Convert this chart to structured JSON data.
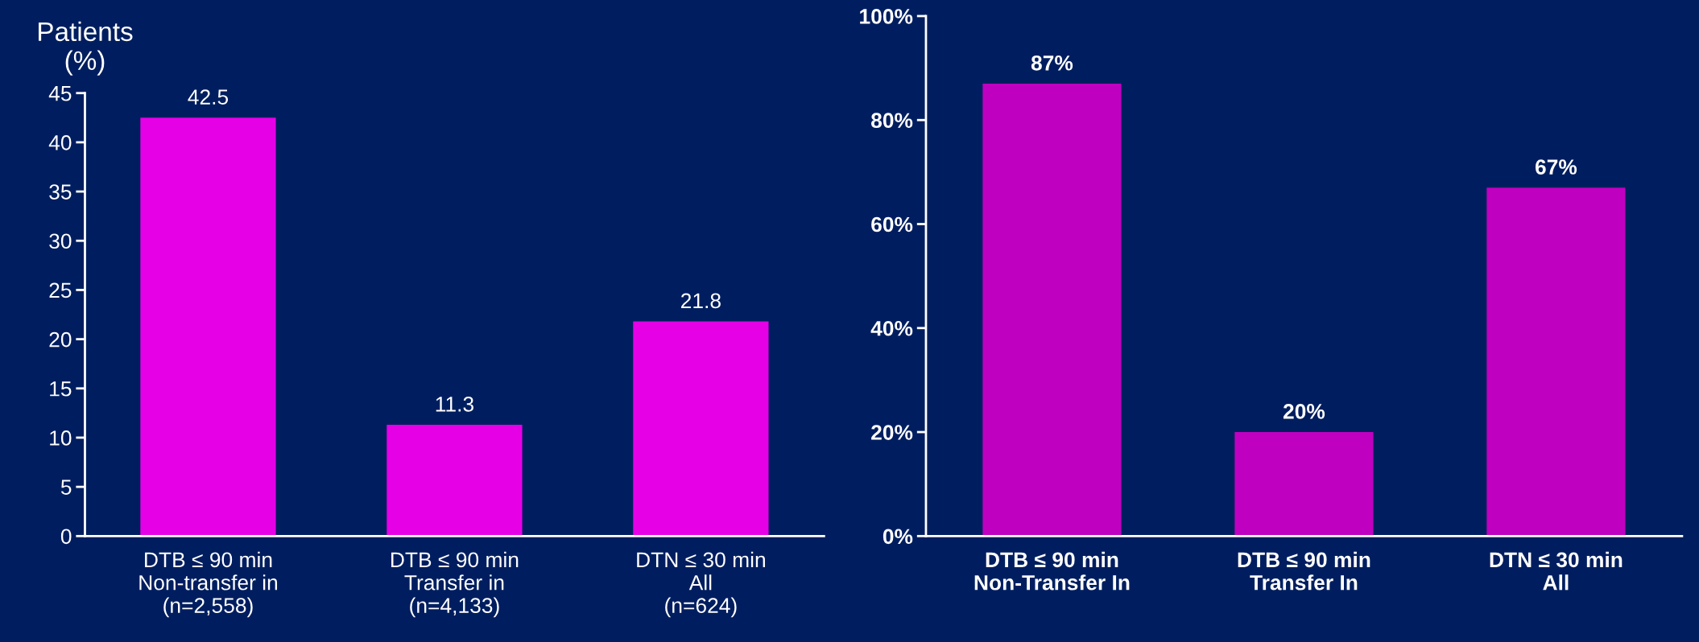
{
  "chart_data": [
    {
      "type": "bar",
      "ylabel": "Patients\n(%)",
      "categories": [
        "DTB ≤ 90 min\nNon-transfer in\n(n=2,558)",
        "DTB ≤ 90 min\nTransfer in\n(n=4,133)",
        "DTN ≤ 30 min\nAll\n(n=624)"
      ],
      "values": [
        42.5,
        11.3,
        21.8
      ],
      "color": "#e600e6",
      "ylim": [
        0,
        45
      ],
      "yticks": [
        0,
        5,
        10,
        15,
        20,
        25,
        30,
        35,
        40,
        45
      ],
      "data_labels": true,
      "grid": false,
      "legend": false
    },
    {
      "type": "bar",
      "categories": [
        "DTB ≤ 90 min\nNon-Transfer In",
        "DTB ≤ 90 min\nTransfer In",
        "DTN ≤ 30 min\nAll"
      ],
      "values": [
        87,
        20,
        67
      ],
      "value_labels": [
        "87%",
        "20%",
        "67%"
      ],
      "color": "#c000c0",
      "ylim": [
        0,
        100
      ],
      "yticks": [
        {
          "value": 0,
          "label": "0%"
        },
        {
          "value": 20,
          "label": "20%"
        },
        {
          "value": 40,
          "label": "40%"
        },
        {
          "value": 60,
          "label": "60%"
        },
        {
          "value": 80,
          "label": "80%"
        },
        {
          "value": 100,
          "label": "100%"
        }
      ],
      "grid": false,
      "legend": false
    }
  ]
}
